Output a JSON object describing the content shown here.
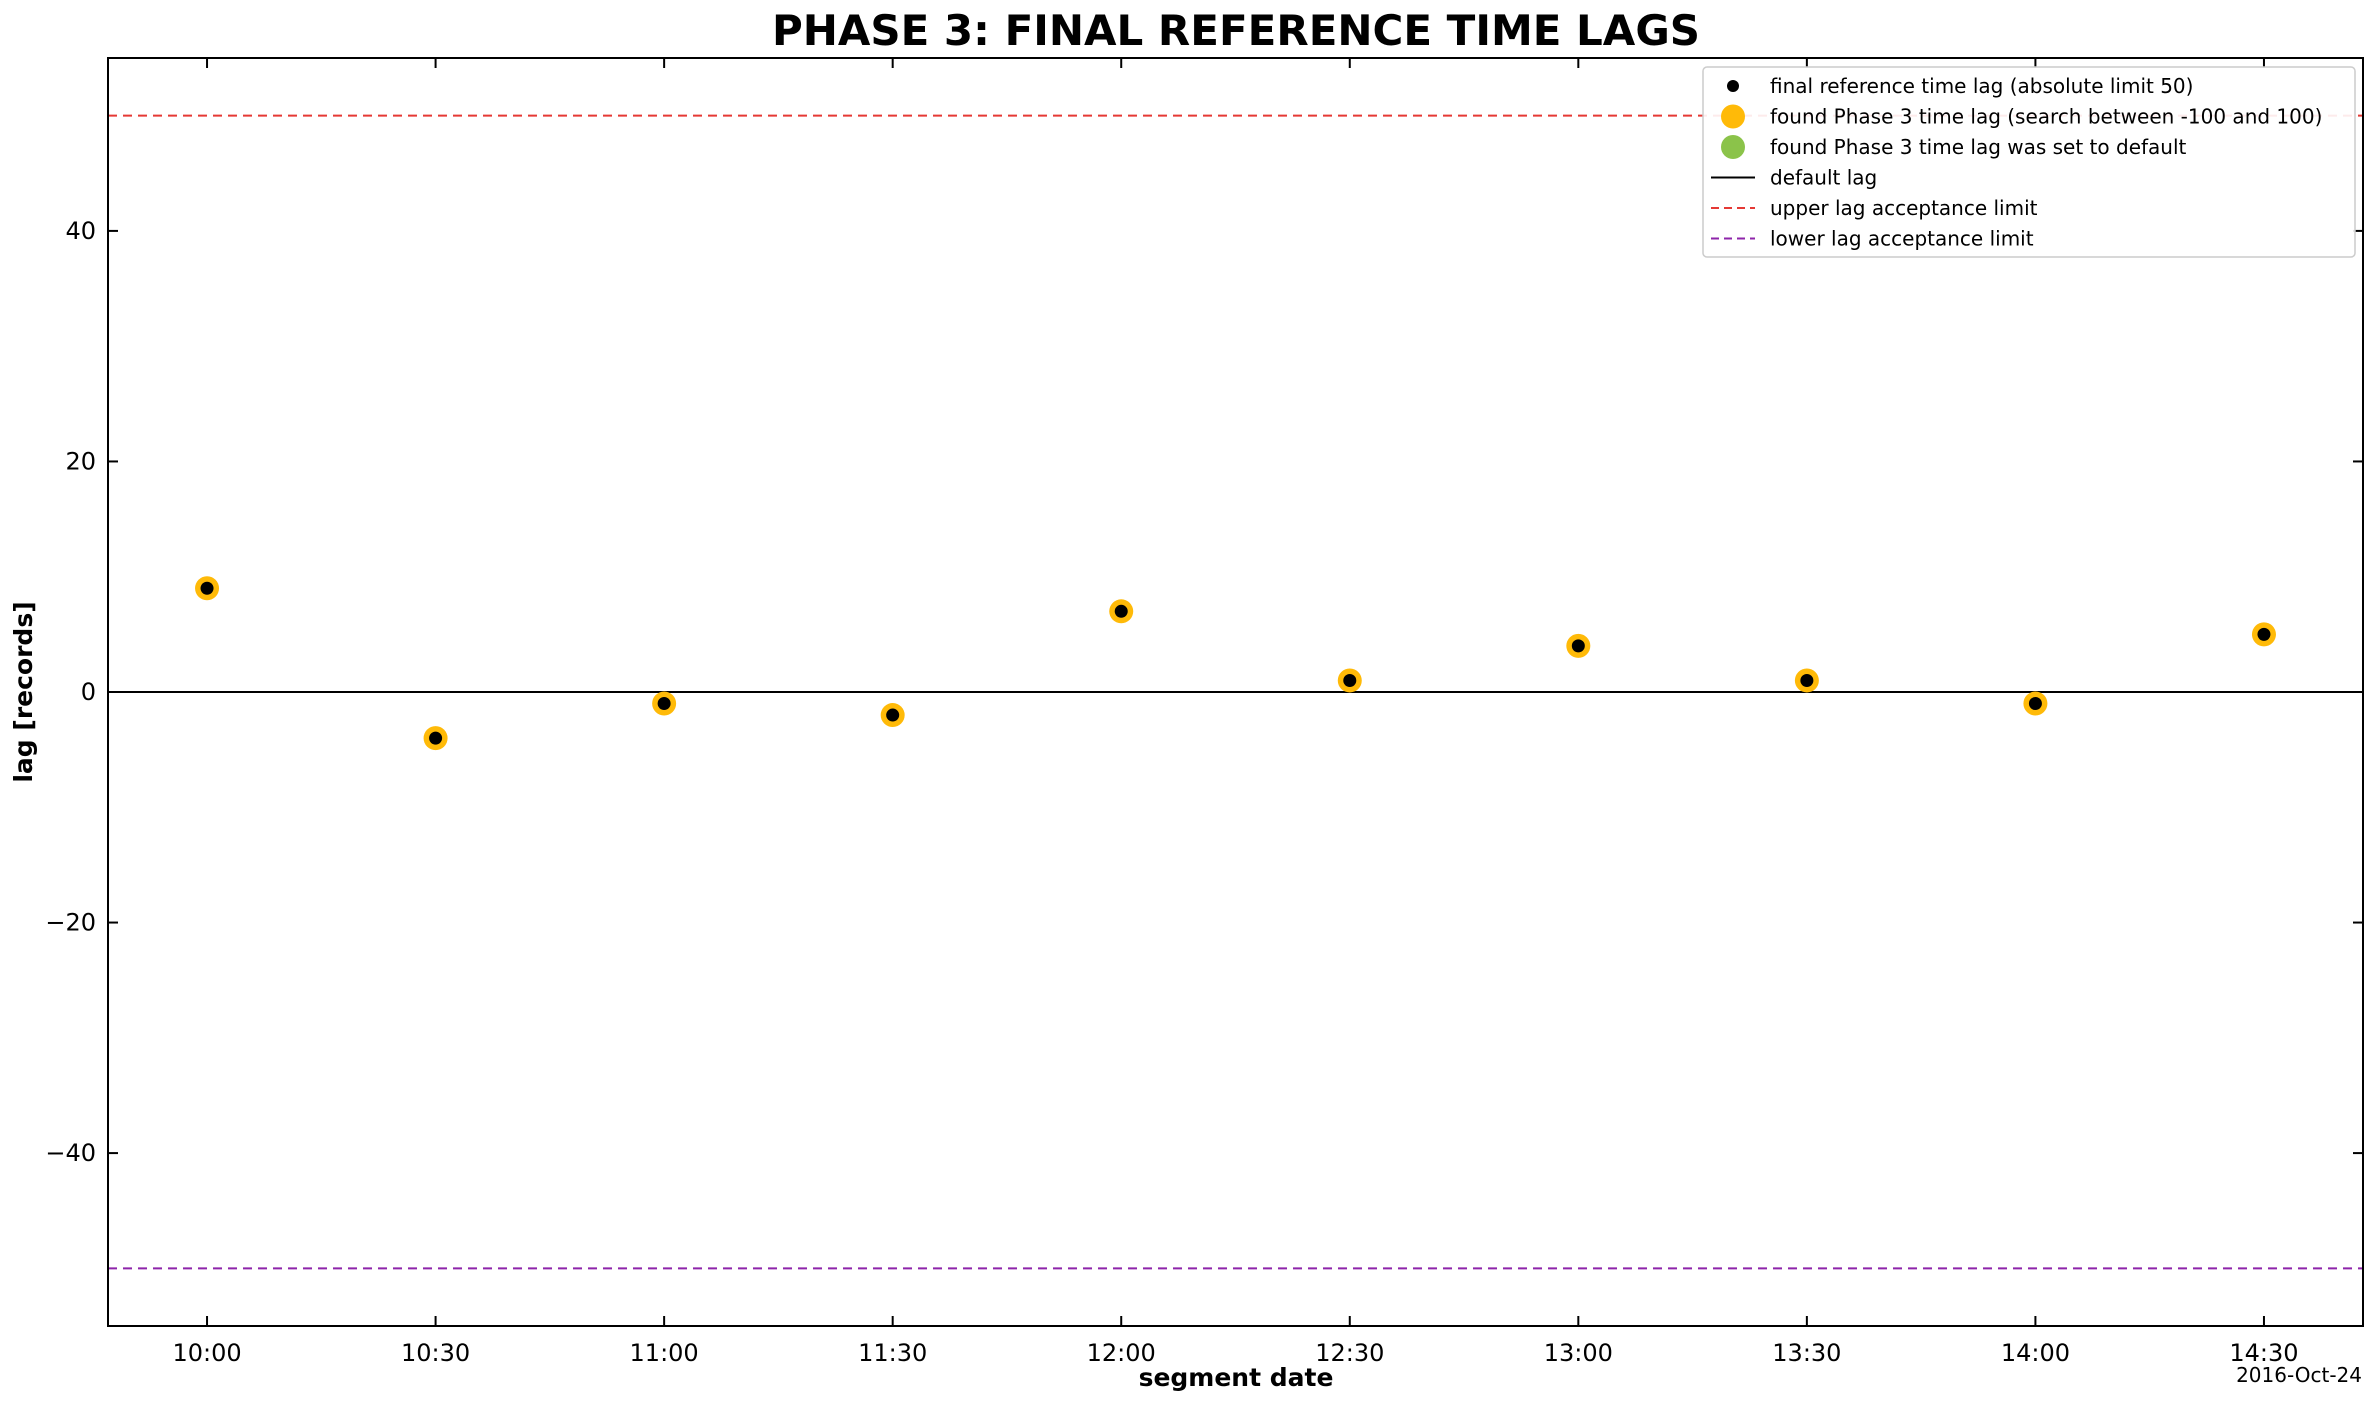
{
  "chart_data": {
    "type": "scatter",
    "title": "PHASE 3: FINAL REFERENCE TIME LAGS",
    "xlabel": "segment date",
    "ylabel": "lag  [records]",
    "date_note": "2016-Oct-24",
    "x_ticks": [
      "10:00",
      "10:30",
      "11:00",
      "11:30",
      "12:00",
      "12:30",
      "13:00",
      "13:30",
      "14:00",
      "14:30"
    ],
    "y_ticks": [
      {
        "value": -40,
        "label": "−40"
      },
      {
        "value": -20,
        "label": "−20"
      },
      {
        "value": 0,
        "label": "0"
      },
      {
        "value": 20,
        "label": "20"
      },
      {
        "value": 40,
        "label": "40"
      }
    ],
    "ylim": [
      -55,
      55
    ],
    "xlim": [
      "09:47",
      "14:43"
    ],
    "grid": false,
    "legend_position": "upper right",
    "x": [
      "10:00",
      "10:30",
      "11:00",
      "11:30",
      "12:00",
      "12:30",
      "13:00",
      "13:30",
      "14:00",
      "14:30"
    ],
    "series": [
      {
        "name": "final reference time lag (absolute limit 50)",
        "marker": "dot",
        "color": "#000000",
        "values": [
          9,
          -4,
          -1,
          -2,
          7,
          1,
          4,
          1,
          -1,
          5
        ]
      },
      {
        "name": "found Phase 3 time lag (search between -100 and 100)",
        "marker": "circle",
        "color": "#FFBA08",
        "values": [
          9,
          -4,
          -1,
          -2,
          7,
          1,
          4,
          1,
          -1,
          5
        ]
      },
      {
        "name": "found Phase 3 time lag was set to default",
        "marker": "circle",
        "color": "#8BC34A",
        "values": []
      }
    ],
    "lines": [
      {
        "name": "default lag",
        "value": 0,
        "color": "#000000",
        "style": "solid"
      },
      {
        "name": "upper lag acceptance limit",
        "value": 50,
        "color": "#E53935",
        "style": "dashed"
      },
      {
        "name": "lower lag acceptance limit",
        "value": -50,
        "color": "#8E24AA",
        "style": "dashed"
      }
    ]
  }
}
